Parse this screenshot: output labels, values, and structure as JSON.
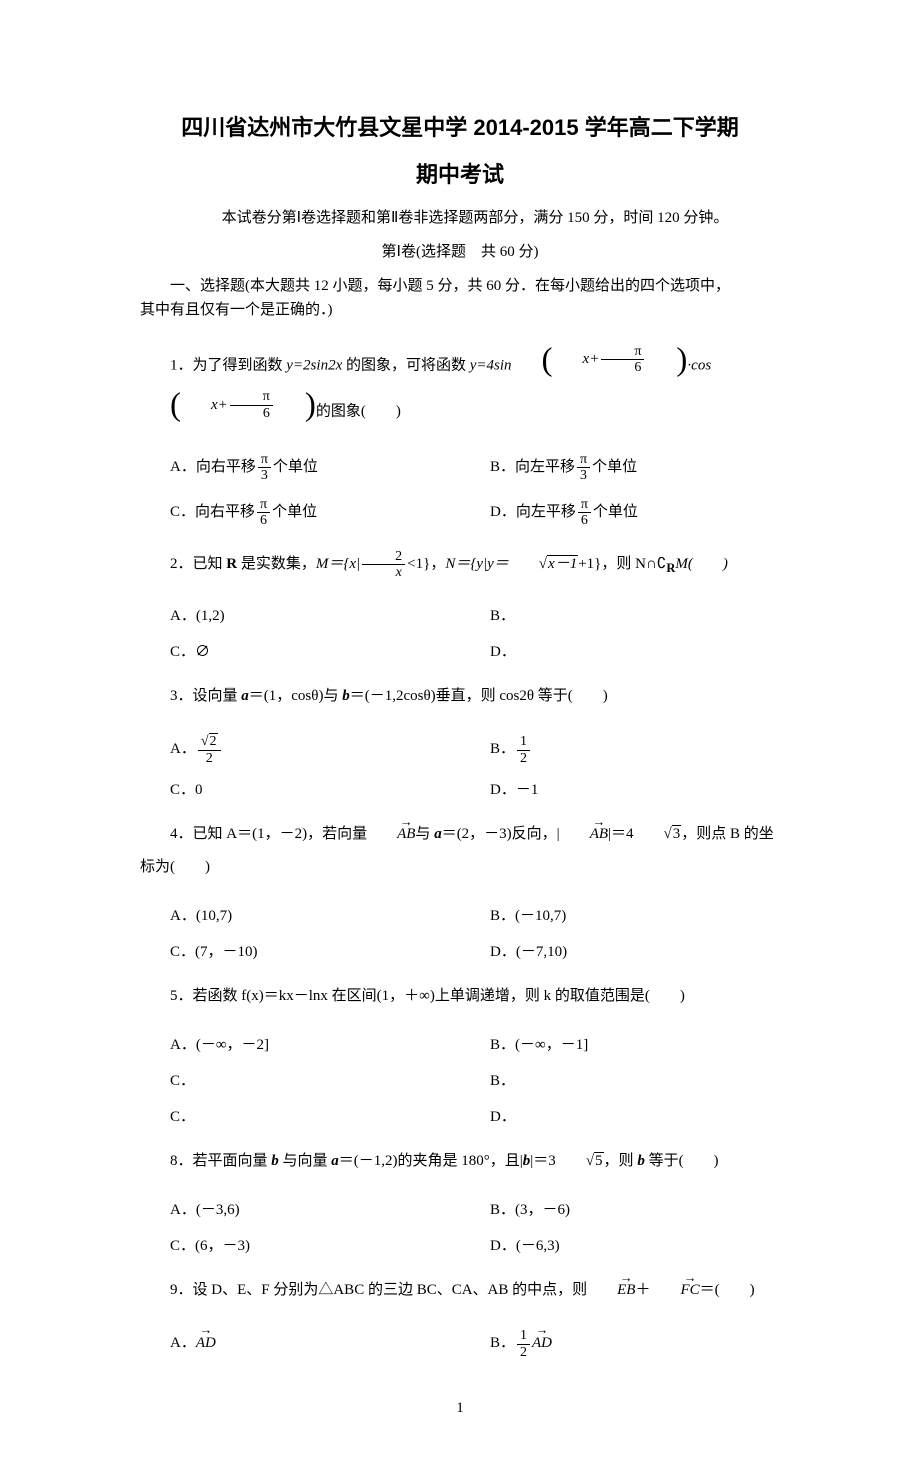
{
  "title_line1": "四川省达州市大竹县文星中学 2014-2015 学年高二下学期",
  "title_line2": "期中考试",
  "subtitle": "本试卷分第Ⅰ卷选择题和第Ⅱ卷非选择题两部分，满分 150 分，时间 120 分钟。",
  "section_label": "第Ⅰ卷(选择题　共 60 分)",
  "instruction_part1": "一、选择题(本大题共 12 小题，每小题 5 分，共 60 分．在每小题给出的四个选项中，",
  "instruction_part2": "其中有且仅有一个是正确的．)",
  "q1": {
    "num": "1．",
    "text_a": "为了得到函数 ",
    "func1": "y=2sin2x",
    "text_b": " 的图象，可将函数 ",
    "func2_a": "y=4sin",
    "func2_x": "x+",
    "func2_pi": "π",
    "func2_6": "6",
    "func2_mid": "·cos",
    "text_c": "的图象(　　)",
    "optA_pre": "A．向右平移",
    "optA_pi": "π",
    "optA_den": "3",
    "optA_post": "个单位",
    "optB_pre": "B．向左平移",
    "optB_pi": "π",
    "optB_den": "3",
    "optB_post": "个单位",
    "optC_pre": "C．向右平移",
    "optC_pi": "π",
    "optC_den": "6",
    "optC_post": "个单位",
    "optD_pre": "D．向左平移",
    "optD_pi": "π",
    "optD_den": "6",
    "optD_post": "个单位"
  },
  "q2": {
    "num": "2．",
    "text_a": "已知 ",
    "R": "R",
    "text_b": " 是实数集，",
    "M_a": "M＝{x|",
    "M_num": "2",
    "M_den": "x",
    "M_b": "<1}，",
    "N_a": "N＝{y|y＝",
    "N_sqrt": "x－1",
    "N_b": "+1}，则 N∩",
    "comp": "∁",
    "R2": "R",
    "Mend": "M(　　)",
    "optA": "A．(1,2)",
    "optB": "B．",
    "optC": "C．∅",
    "optD": "D．"
  },
  "q3": {
    "num": "3．",
    "text": "设向量 ",
    "a": "a",
    "text2": "＝(1，cosθ)与 ",
    "b": "b",
    "text3": "＝(－1,2cosθ)垂直，则 cos2θ 等于(　　)",
    "optA_pre": "A．",
    "optA_num": "2",
    "optA_den": "2",
    "optB_pre": "B．",
    "optB_num": "1",
    "optB_den": "2",
    "optC": "C．0",
    "optD": "D．－1"
  },
  "q4": {
    "num": "4．",
    "text_a": "已知 A＝(1，－2)，若向量",
    "AB": "AB",
    "text_b": "与 ",
    "a": "a",
    "text_c": "＝(2，－3)反向，|",
    "AB2": "AB",
    "text_d": "|＝4",
    "sqrt3": "3",
    "text_e": "，则点 B 的坐标为(　　)",
    "optA": "A．(10,7)",
    "optB": "B．(－10,7)",
    "optC": "C．(7，－10)",
    "optD": "D．(－7,10)"
  },
  "q5": {
    "num": "5．",
    "text": "若函数 f(x)＝kx－lnx 在区间(1，＋∞)上单调递增，则 k 的取值范围是(　　)",
    "optA": "A．(－∞，－2]",
    "optB": "B．(－∞，－1]",
    "optC": "C．",
    "optB2": "B．",
    "optC2": "C．",
    "optD": "D．"
  },
  "q8": {
    "num": "8．",
    "text_a": "若平面向量 ",
    "b": "b",
    "text_b": " 与向量 ",
    "a": "a",
    "text_c": "＝(－1,2)的夹角是 180°，且|",
    "b2": "b",
    "text_d": "|＝3",
    "sqrt5": "5",
    "text_e": "，则 ",
    "b3": "b",
    "text_f": " 等于(　　)",
    "optA": "A．(－3,6)",
    "optB": "B．(3，－6)",
    "optC": "C．(6，－3)",
    "optD": "D．(－6,3)"
  },
  "q9": {
    "num": "9．",
    "text_a": "设 D、E、F 分别为△ABC 的三边 BC、CA、AB 的中点，则",
    "EB": "EB",
    "plus": "＋",
    "FC": "FC",
    "text_b": "＝(　　)",
    "optA_pre": "A．",
    "optA_vec": "AD",
    "optB_pre": "B．",
    "optB_num": "1",
    "optB_den": "2",
    "optB_vec": "AD"
  },
  "page_number": "1"
}
